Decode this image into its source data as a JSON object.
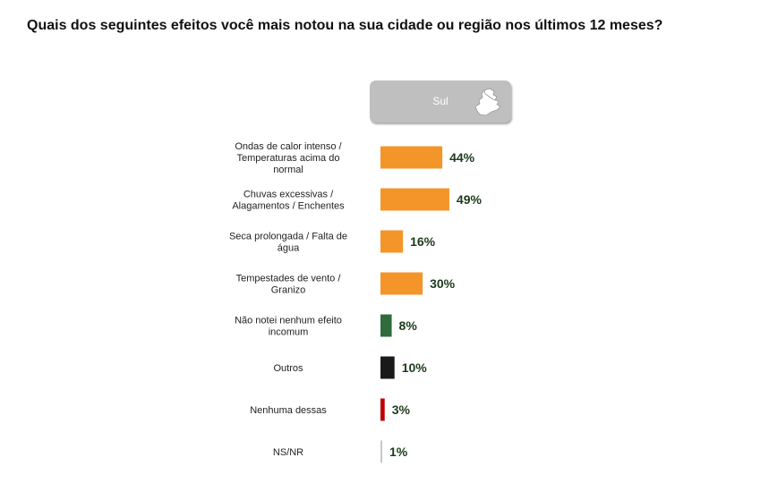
{
  "question": "Quais dos seguintes efeitos você mais notou na sua cidade ou região nos últimos 12 meses?",
  "region": {
    "label": "Sul",
    "icon": "south-region-map-icon",
    "color": "#bfbfbf"
  },
  "chart_data": {
    "type": "bar",
    "orientation": "horizontal",
    "title": "Quais dos seguintes efeitos você mais notou na sua cidade ou região nos últimos 12 meses?",
    "series": [
      {
        "name": "Sul",
        "values": [
          44,
          49,
          16,
          30,
          8,
          10,
          3,
          1
        ]
      }
    ],
    "categories": [
      [
        "Ondas de calor intenso /",
        "Temperaturas acima do",
        "normal"
      ],
      [
        "Chuvas excessivas /",
        "Alagamentos / Enchentes"
      ],
      [
        "Seca prolongada / Falta de",
        "água"
      ],
      [
        "Tempestades de vento /",
        "Granizo"
      ],
      [
        "Não notei nenhum efeito",
        "incomum"
      ],
      [
        "Outros"
      ],
      [
        "Nenhuma dessas"
      ],
      [
        "NS/NR"
      ]
    ],
    "value_labels": [
      "44%",
      "49%",
      "16%",
      "30%",
      "8%",
      "10%",
      "3%",
      "1%"
    ],
    "bar_colors": [
      "#f39528",
      "#f39528",
      "#f39528",
      "#f39528",
      "#2f6b3c",
      "#1a1a1a",
      "#c00000",
      "#c8c8c8"
    ],
    "unit": "%",
    "xlim": [
      0,
      100
    ],
    "grid": false,
    "legend": "none"
  }
}
